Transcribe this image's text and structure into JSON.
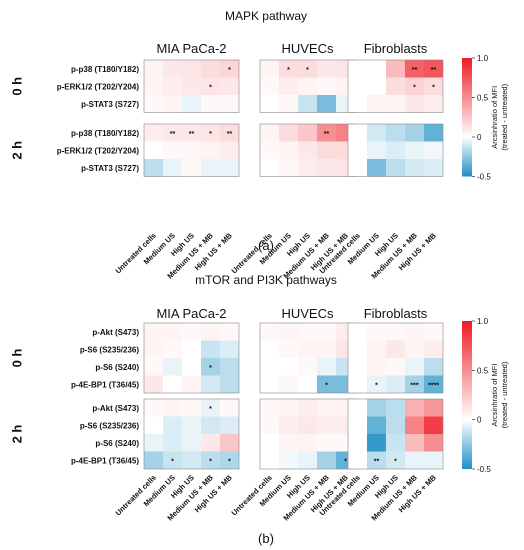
{
  "figure": {
    "panel_a": "(a)",
    "panel_b": "(b)",
    "colorbar_label_1": "Arcsinhratio of MFI",
    "colorbar_label_2": "(treated - untreated)",
    "colorbar_ticks": [
      "1.0",
      "0.5",
      "0",
      "-0.5"
    ]
  },
  "chart_data": [
    {
      "type": "heatmap",
      "title": "MAPK pathway",
      "cell_groups": [
        "MIA PaCa-2",
        "HUVECs",
        "Fibroblasts"
      ],
      "columns": [
        "Untreated cells",
        "Medium US",
        "High US",
        "Medium US + MB",
        "High US + MB"
      ],
      "time_points": [
        "0 h",
        "2 h"
      ],
      "rows": [
        "p-p38 (T180/Y182)",
        "p-ERK1/2 (T202/Y204)",
        "p-STAT3 (S727)"
      ],
      "color_scale": {
        "min": -0.5,
        "max": 1.0,
        "low_color": "#1f8fc4",
        "mid_color": "#ffffff",
        "high_color": "#ee1c23"
      },
      "values": {
        "0 h": {
          "MIA PaCa-2": [
            [
              0.05,
              0.1,
              0.12,
              0.15,
              0.18
            ],
            [
              0.05,
              0.08,
              0.1,
              0.12,
              0.1
            ],
            [
              0.03,
              0.05,
              -0.05,
              0.03,
              0.03
            ]
          ],
          "HUVECs": [
            [
              0.05,
              0.15,
              0.15,
              0.1,
              0.12
            ],
            [
              0.03,
              0.08,
              0.05,
              0.03,
              0.05
            ],
            [
              0.0,
              0.03,
              -0.12,
              -0.3,
              -0.05
            ]
          ],
          "Fibroblasts": [
            [
              0.0,
              0.0,
              0.3,
              0.7,
              0.75
            ],
            [
              0.0,
              0.0,
              0.15,
              0.2,
              0.15
            ],
            [
              0.0,
              0.05,
              0.05,
              0.1,
              0.08
            ]
          ]
        },
        "2 h": {
          "MIA PaCa-2": [
            [
              0.08,
              0.1,
              0.1,
              0.12,
              0.15
            ],
            [
              0.0,
              0.03,
              0.03,
              0.05,
              0.08
            ],
            [
              -0.15,
              -0.05,
              0.03,
              -0.05,
              -0.05
            ]
          ],
          "HUVECs": [
            [
              0.05,
              0.15,
              0.25,
              0.5,
              0.55
            ],
            [
              0.03,
              0.05,
              0.1,
              0.15,
              0.15
            ],
            [
              0.0,
              0.03,
              0.08,
              0.1,
              0.12
            ]
          ],
          "Fibroblasts": [
            [
              0.0,
              -0.1,
              -0.15,
              -0.2,
              -0.35
            ],
            [
              0.0,
              -0.05,
              -0.08,
              -0.05,
              -0.03
            ],
            [
              0.0,
              -0.3,
              -0.15,
              -0.1,
              -0.08
            ]
          ]
        }
      },
      "significance": {
        "0 h": {
          "MIA PaCa-2": [
            [
              "",
              "",
              "",
              "",
              "*"
            ],
            [
              "",
              "",
              "",
              "*",
              ""
            ],
            [
              "",
              "",
              "",
              "",
              ""
            ]
          ],
          "HUVECs": [
            [
              "",
              "*",
              "*",
              "",
              ""
            ],
            [
              "",
              "",
              "",
              "",
              ""
            ],
            [
              "",
              "",
              "",
              "",
              ""
            ]
          ],
          "Fibroblasts": [
            [
              "",
              "",
              "",
              "**",
              "**"
            ],
            [
              "",
              "",
              "",
              "*",
              "*"
            ],
            [
              "",
              "",
              "",
              "",
              ""
            ]
          ]
        },
        "2 h": {
          "MIA PaCa-2": [
            [
              "",
              "**",
              "**",
              "*",
              "**"
            ],
            [
              "",
              "",
              "",
              "",
              ""
            ],
            [
              "",
              "",
              "",
              "",
              ""
            ]
          ],
          "HUVECs": [
            [
              "",
              "",
              "",
              "**",
              ""
            ],
            [
              "",
              "",
              "",
              "",
              ""
            ],
            [
              "",
              "",
              "",
              "",
              ""
            ]
          ],
          "Fibroblasts": [
            [
              "",
              "",
              "",
              "",
              ""
            ],
            [
              "",
              "",
              "",
              "",
              ""
            ],
            [
              "",
              "",
              "",
              "",
              ""
            ]
          ]
        }
      }
    },
    {
      "type": "heatmap",
      "title": "mTOR and PI3K pathways",
      "cell_groups": [
        "MIA PaCa-2",
        "HUVECs",
        "Fibroblasts"
      ],
      "columns": [
        "Untreated cells",
        "Medium US",
        "High US",
        "Medium US + MB",
        "High US + MB"
      ],
      "time_points": [
        "0 h",
        "2 h"
      ],
      "rows": [
        "p-Akt (S473)",
        "p-S6 (S235/236)",
        "p-S6 (S240)",
        "p-4E-BP1 (T36/45)"
      ],
      "color_scale": {
        "min": -0.5,
        "max": 1.0,
        "low_color": "#1f8fc4",
        "mid_color": "#ffffff",
        "high_color": "#ee1c23"
      },
      "values": {
        "0 h": {
          "MIA PaCa-2": [
            [
              0.05,
              0.05,
              0.03,
              0.05,
              0.03
            ],
            [
              0.05,
              0.03,
              0.0,
              -0.12,
              -0.08
            ],
            [
              0.03,
              -0.05,
              0.0,
              -0.2,
              -0.15
            ],
            [
              0.1,
              0.0,
              0.05,
              -0.1,
              -0.15
            ]
          ],
          "HUVECs": [
            [
              0.03,
              0.05,
              0.03,
              0.03,
              0.08
            ],
            [
              0.0,
              0.03,
              0.05,
              0.05,
              0.12
            ],
            [
              0.0,
              0.0,
              0.03,
              -0.05,
              -0.12
            ],
            [
              0.0,
              0.03,
              0.0,
              -0.3,
              -0.3
            ]
          ],
          "Fibroblasts": [
            [
              0.0,
              0.03,
              0.03,
              0.05,
              0.03
            ],
            [
              0.0,
              0.05,
              0.1,
              0.05,
              0.08
            ],
            [
              0.0,
              0.05,
              0.03,
              -0.05,
              -0.15
            ],
            [
              0.0,
              -0.05,
              -0.08,
              -0.2,
              -0.35
            ]
          ]
        },
        "2 h": {
          "MIA PaCa-2": [
            [
              0.03,
              0.05,
              0.03,
              -0.05,
              0.03
            ],
            [
              0.0,
              -0.08,
              -0.05,
              -0.1,
              -0.08
            ],
            [
              -0.05,
              -0.08,
              -0.05,
              0.1,
              0.25
            ],
            [
              -0.2,
              -0.12,
              -0.1,
              -0.15,
              -0.18
            ]
          ],
          "HUVECs": [
            [
              0.03,
              0.05,
              0.08,
              0.05,
              0.05
            ],
            [
              0.03,
              0.08,
              0.1,
              0.08,
              0.08
            ],
            [
              0.0,
              0.05,
              0.05,
              0.03,
              0.03
            ],
            [
              0.0,
              -0.03,
              -0.05,
              -0.2,
              -0.35
            ]
          ],
          "Fibroblasts": [
            [
              0.0,
              -0.2,
              -0.15,
              0.35,
              0.45
            ],
            [
              0.0,
              -0.35,
              -0.15,
              0.55,
              0.85
            ],
            [
              0.0,
              -0.45,
              -0.12,
              0.3,
              0.5
            ],
            [
              0.0,
              -0.15,
              -0.1,
              -0.05,
              -0.05
            ]
          ]
        }
      },
      "significance": {
        "0 h": {
          "MIA PaCa-2": [
            [
              "",
              "",
              "",
              "",
              ""
            ],
            [
              "",
              "",
              "",
              "",
              ""
            ],
            [
              "",
              "",
              "",
              "*",
              ""
            ],
            [
              "",
              "",
              "",
              "",
              ""
            ]
          ],
          "HUVECs": [
            [
              "",
              "",
              "",
              "",
              ""
            ],
            [
              "",
              "",
              "",
              "",
              ""
            ],
            [
              "",
              "",
              "",
              "",
              ""
            ],
            [
              "",
              "",
              "",
              "*",
              ""
            ]
          ],
          "Fibroblasts": [
            [
              "",
              "",
              "",
              "",
              ""
            ],
            [
              "",
              "",
              "",
              "",
              ""
            ],
            [
              "",
              "",
              "",
              "",
              ""
            ],
            [
              "",
              "*",
              "",
              "***",
              "****"
            ]
          ]
        },
        "2 h": {
          "MIA PaCa-2": [
            [
              "",
              "",
              "",
              "*",
              ""
            ],
            [
              "",
              "",
              "",
              "",
              ""
            ],
            [
              "",
              "",
              "",
              "",
              ""
            ],
            [
              "",
              "*",
              "",
              "*",
              "*"
            ]
          ],
          "HUVECs": [
            [
              "",
              "",
              "",
              "",
              ""
            ],
            [
              "",
              "",
              "",
              "",
              ""
            ],
            [
              "",
              "",
              "",
              "",
              ""
            ],
            [
              "",
              "",
              "",
              "",
              "*"
            ]
          ],
          "Fibroblasts": [
            [
              "",
              "",
              "",
              "",
              ""
            ],
            [
              "",
              "",
              "",
              "",
              ""
            ],
            [
              "",
              "",
              "",
              "",
              ""
            ],
            [
              "",
              "**",
              "*",
              "",
              ""
            ]
          ]
        }
      }
    }
  ]
}
